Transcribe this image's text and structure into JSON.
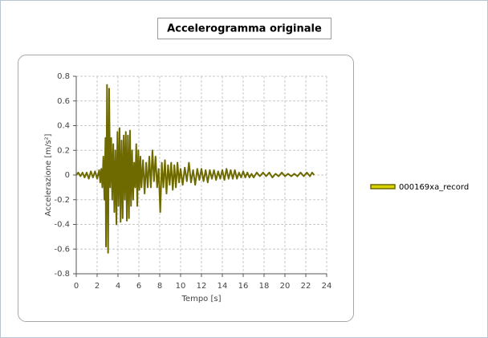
{
  "chart_data": {
    "type": "line",
    "title": "Accelerogramma originale",
    "x_label": "Tempo [s]",
    "y_label": "Accelerazione [m/s²]",
    "xlim": [
      0,
      24
    ],
    "ylim": [
      -0.8,
      0.8
    ],
    "xticks": [
      0,
      2,
      4,
      6,
      8,
      10,
      12,
      14,
      16,
      18,
      20,
      22,
      24
    ],
    "yticks": [
      0.8,
      0.6,
      0.4,
      0.2,
      0,
      -0.2,
      -0.4,
      -0.6,
      -0.8
    ],
    "grid": true,
    "legend": "right",
    "x": [
      0,
      0.2,
      0.4,
      0.6,
      0.8,
      1.0,
      1.2,
      1.4,
      1.6,
      1.8,
      2.0,
      2.2,
      2.3,
      2.4,
      2.5,
      2.6,
      2.7,
      2.8,
      2.85,
      2.95,
      3.05,
      3.15,
      3.25,
      3.35,
      3.45,
      3.55,
      3.65,
      3.75,
      3.85,
      3.95,
      4.05,
      4.15,
      4.25,
      4.35,
      4.45,
      4.55,
      4.65,
      4.75,
      4.85,
      4.95,
      5.05,
      5.15,
      5.25,
      5.35,
      5.45,
      5.55,
      5.65,
      5.75,
      5.85,
      5.95,
      6.05,
      6.15,
      6.25,
      6.4,
      6.55,
      6.7,
      6.85,
      7.0,
      7.15,
      7.3,
      7.45,
      7.6,
      7.75,
      7.9,
      8.05,
      8.2,
      8.35,
      8.5,
      8.65,
      8.8,
      8.95,
      9.1,
      9.25,
      9.4,
      9.55,
      9.7,
      9.85,
      10.0,
      10.2,
      10.4,
      10.6,
      10.8,
      11.0,
      11.2,
      11.4,
      11.6,
      11.8,
      12.0,
      12.2,
      12.4,
      12.6,
      12.8,
      13.0,
      13.2,
      13.4,
      13.6,
      13.8,
      14.0,
      14.2,
      14.4,
      14.6,
      14.8,
      15.0,
      15.2,
      15.4,
      15.6,
      15.8,
      16.0,
      16.2,
      16.4,
      16.6,
      16.8,
      17.0,
      17.3,
      17.6,
      17.9,
      18.2,
      18.5,
      18.8,
      19.1,
      19.4,
      19.7,
      20.0,
      20.3,
      20.6,
      20.9,
      21.2,
      21.5,
      21.8,
      22.1,
      22.4,
      22.6,
      22.8
    ],
    "series": [
      {
        "name": "000169xa_record",
        "color": "#6e6a00",
        "values": [
          0,
          0.02,
          -0.01,
          0.02,
          -0.02,
          0.02,
          -0.03,
          0.03,
          -0.02,
          0.03,
          -0.03,
          0.04,
          -0.06,
          0.05,
          -0.1,
          0.15,
          -0.2,
          0.3,
          -0.58,
          0.73,
          -0.63,
          0.7,
          -0.1,
          0.3,
          -0.2,
          0.25,
          -0.3,
          0.2,
          -0.4,
          0.35,
          -0.25,
          0.38,
          -0.38,
          0.28,
          -0.35,
          0.32,
          -0.2,
          0.35,
          -0.37,
          0.32,
          -0.35,
          0.36,
          -0.25,
          0.2,
          -0.2,
          0.1,
          -0.1,
          0.25,
          -0.25,
          0.2,
          -0.12,
          0.15,
          -0.1,
          0.12,
          -0.15,
          0.1,
          -0.1,
          0.15,
          -0.1,
          0.2,
          -0.05,
          0.15,
          -0.1,
          0.05,
          -0.3,
          0.1,
          -0.1,
          0.12,
          -0.15,
          0.08,
          -0.08,
          0.1,
          -0.12,
          0.08,
          -0.1,
          0.1,
          -0.06,
          0.05,
          -0.08,
          0.06,
          -0.05,
          0.1,
          -0.06,
          0.04,
          -0.08,
          0.05,
          -0.04,
          0.05,
          -0.05,
          0.04,
          -0.06,
          0.04,
          -0.03,
          0.04,
          -0.04,
          0.03,
          -0.03,
          0.04,
          -0.04,
          0.05,
          -0.03,
          0.04,
          -0.03,
          0.04,
          -0.03,
          0.02,
          -0.02,
          0.03,
          -0.02,
          0.02,
          -0.02,
          0.01,
          -0.02,
          0.02,
          -0.01,
          0.02,
          -0.01,
          0.02,
          -0.02,
          0.01,
          -0.01,
          0.02,
          -0.01,
          0.01,
          -0.01,
          0.01,
          -0.01,
          0.02,
          -0.01,
          0.02,
          -0.01,
          0.02,
          0
        ]
      }
    ]
  }
}
